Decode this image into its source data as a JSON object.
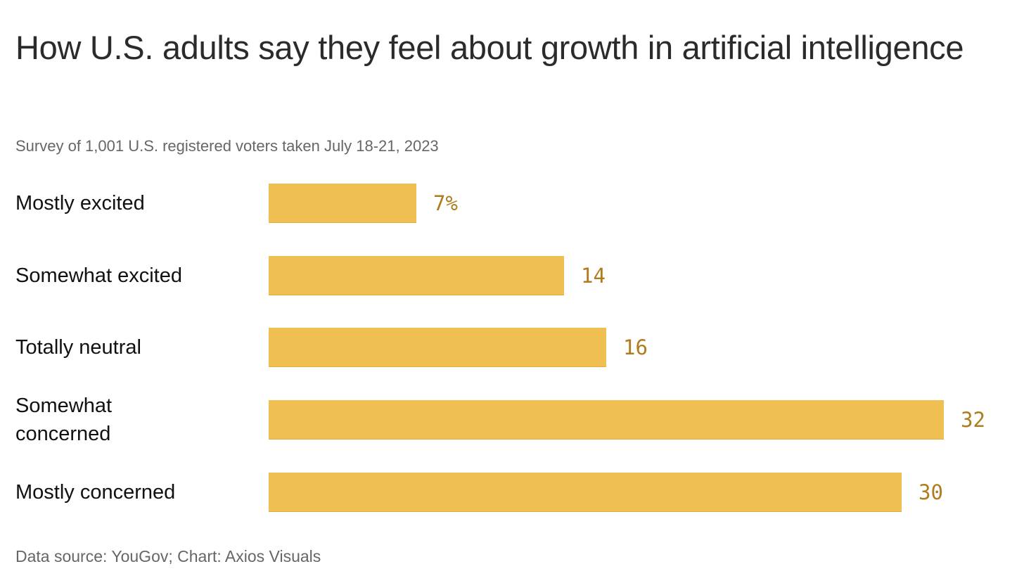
{
  "chart_data": {
    "type": "bar",
    "orientation": "horizontal",
    "title": "How U.S. adults say they feel about growth in artificial intelligence",
    "subtitle": "Survey of 1,001 U.S. registered voters taken July 18-21, 2023",
    "footer": "Data source: YouGov; Chart: Axios Visuals",
    "categories": [
      "Mostly excited",
      "Somewhat excited",
      "Totally neutral",
      "Somewhat concerned",
      "Mostly concerned"
    ],
    "values": [
      7,
      14,
      16,
      32,
      30
    ],
    "value_labels": [
      "7%",
      "14",
      "16",
      "32",
      "30"
    ],
    "unit": "%",
    "xlim": [
      0,
      32
    ],
    "grid": false,
    "colors": {
      "bar": "#efbf52",
      "label": "#b07d1e"
    }
  }
}
